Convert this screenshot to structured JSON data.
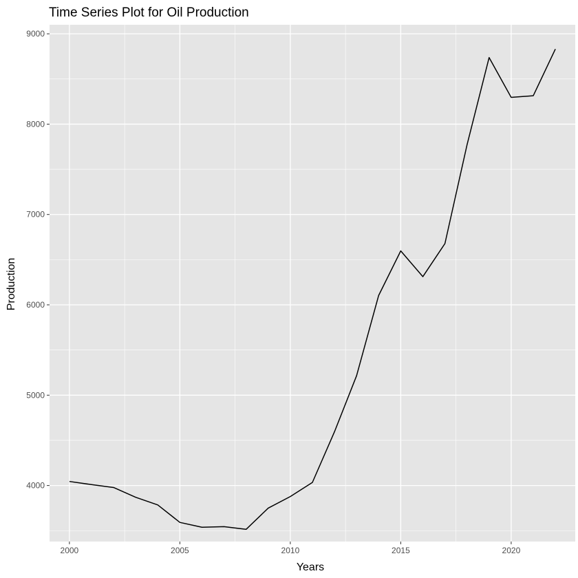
{
  "chart_data": {
    "type": "line",
    "title": "Time Series Plot for Oil Production",
    "xlabel": "Years",
    "ylabel": "Production",
    "x": [
      2000,
      2001,
      2002,
      2003,
      2004,
      2005,
      2006,
      2007,
      2008,
      2009,
      2010,
      2011,
      2012,
      2013,
      2014,
      2015,
      2016,
      2017,
      2018,
      2019,
      2020,
      2021,
      2022
    ],
    "series": [
      {
        "values": [
          4045,
          4010,
          3978,
          3870,
          3785,
          3592,
          3538,
          3545,
          3515,
          3750,
          3878,
          4034,
          4595,
          5215,
          6104,
          6597,
          6312,
          6678,
          7770,
          8737,
          8296,
          8315,
          8831
        ]
      }
    ],
    "xlim": [
      1999.1,
      2022.9
    ],
    "ylim": [
      3380,
      9100
    ],
    "xticks": [
      "2000",
      "2005",
      "2010",
      "2015",
      "2020"
    ],
    "yticks": [
      "4000",
      "5000",
      "6000",
      "7000",
      "8000",
      "9000"
    ],
    "grid": true,
    "colors": {
      "panel": "#e5e5e5",
      "grid": "#ffffff",
      "line": "#000000"
    }
  }
}
